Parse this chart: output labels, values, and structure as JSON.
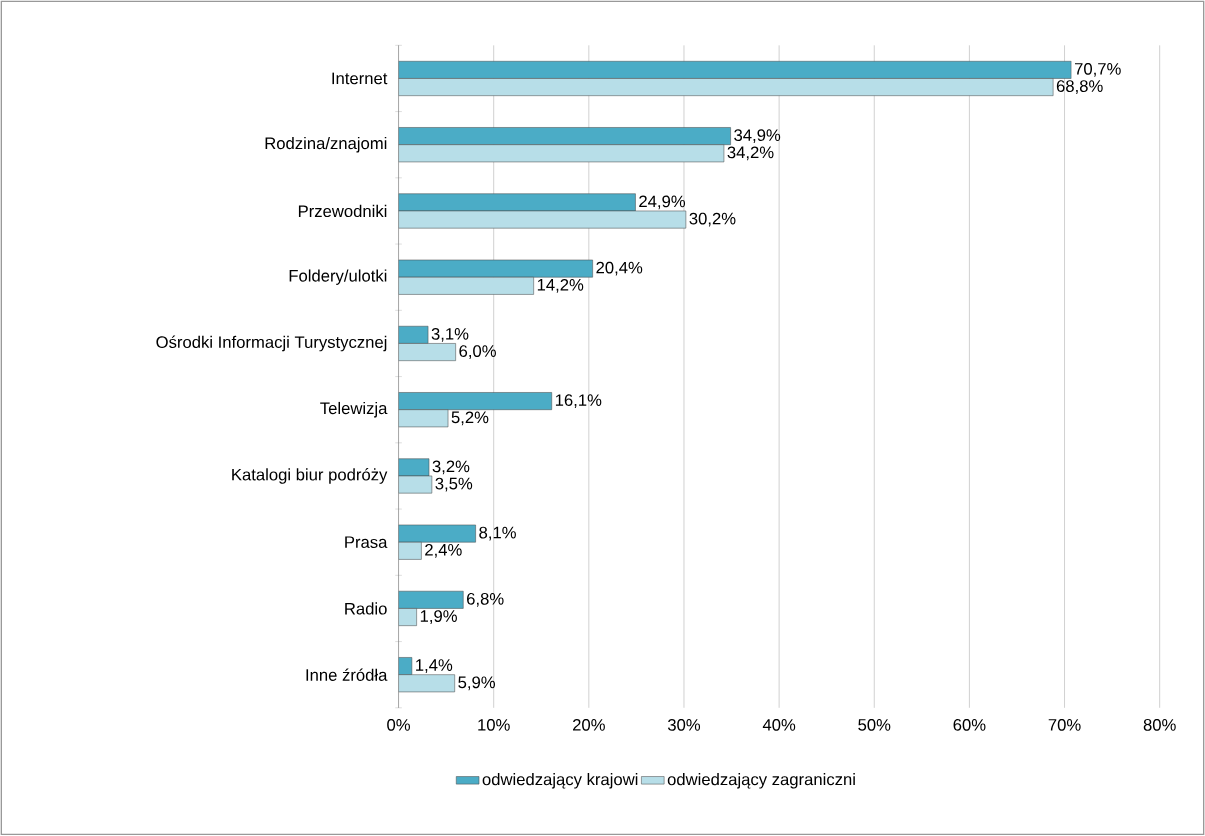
{
  "chart_data": {
    "type": "bar",
    "orientation": "horizontal",
    "categories": [
      "Internet",
      "Rodzina/znajomi",
      "Przewodniki",
      "Foldery/ulotki",
      "Ośrodki Informacji Turystycznej",
      "Telewizja",
      "Katalogi biur podróży",
      "Prasa",
      "Radio",
      "Inne źródła"
    ],
    "series": [
      {
        "name": "odwiedzający krajowi",
        "color": "#4bacc6",
        "values": [
          70.7,
          34.9,
          24.9,
          20.4,
          3.1,
          16.1,
          3.2,
          8.1,
          6.8,
          1.4
        ],
        "value_labels": [
          "70,7%",
          "34,9%",
          "24,9%",
          "20,4%",
          "3,1%",
          "16,1%",
          "3,2%",
          "8,1%",
          "6,8%",
          "1,4%"
        ]
      },
      {
        "name": "odwiedzający zagraniczni",
        "color": "#b7dee8",
        "values": [
          68.8,
          34.2,
          30.2,
          14.2,
          6.0,
          5.2,
          3.5,
          2.4,
          1.9,
          5.9
        ],
        "value_labels": [
          "68,8%",
          "34,2%",
          "30,2%",
          "14,2%",
          "6,0%",
          "5,2%",
          "3,5%",
          "2,4%",
          "1,9%",
          "5,9%"
        ]
      }
    ],
    "xlim": [
      0,
      80
    ],
    "xticks": [
      {
        "value": 0,
        "label": "0%"
      },
      {
        "value": 10,
        "label": "10%"
      },
      {
        "value": 20,
        "label": "20%"
      },
      {
        "value": 30,
        "label": "30%"
      },
      {
        "value": 40,
        "label": "40%"
      },
      {
        "value": 50,
        "label": "50%"
      },
      {
        "value": 60,
        "label": "60%"
      },
      {
        "value": 70,
        "label": "70%"
      },
      {
        "value": 80,
        "label": "80%"
      }
    ],
    "grid": "x",
    "legend": "bottom"
  }
}
